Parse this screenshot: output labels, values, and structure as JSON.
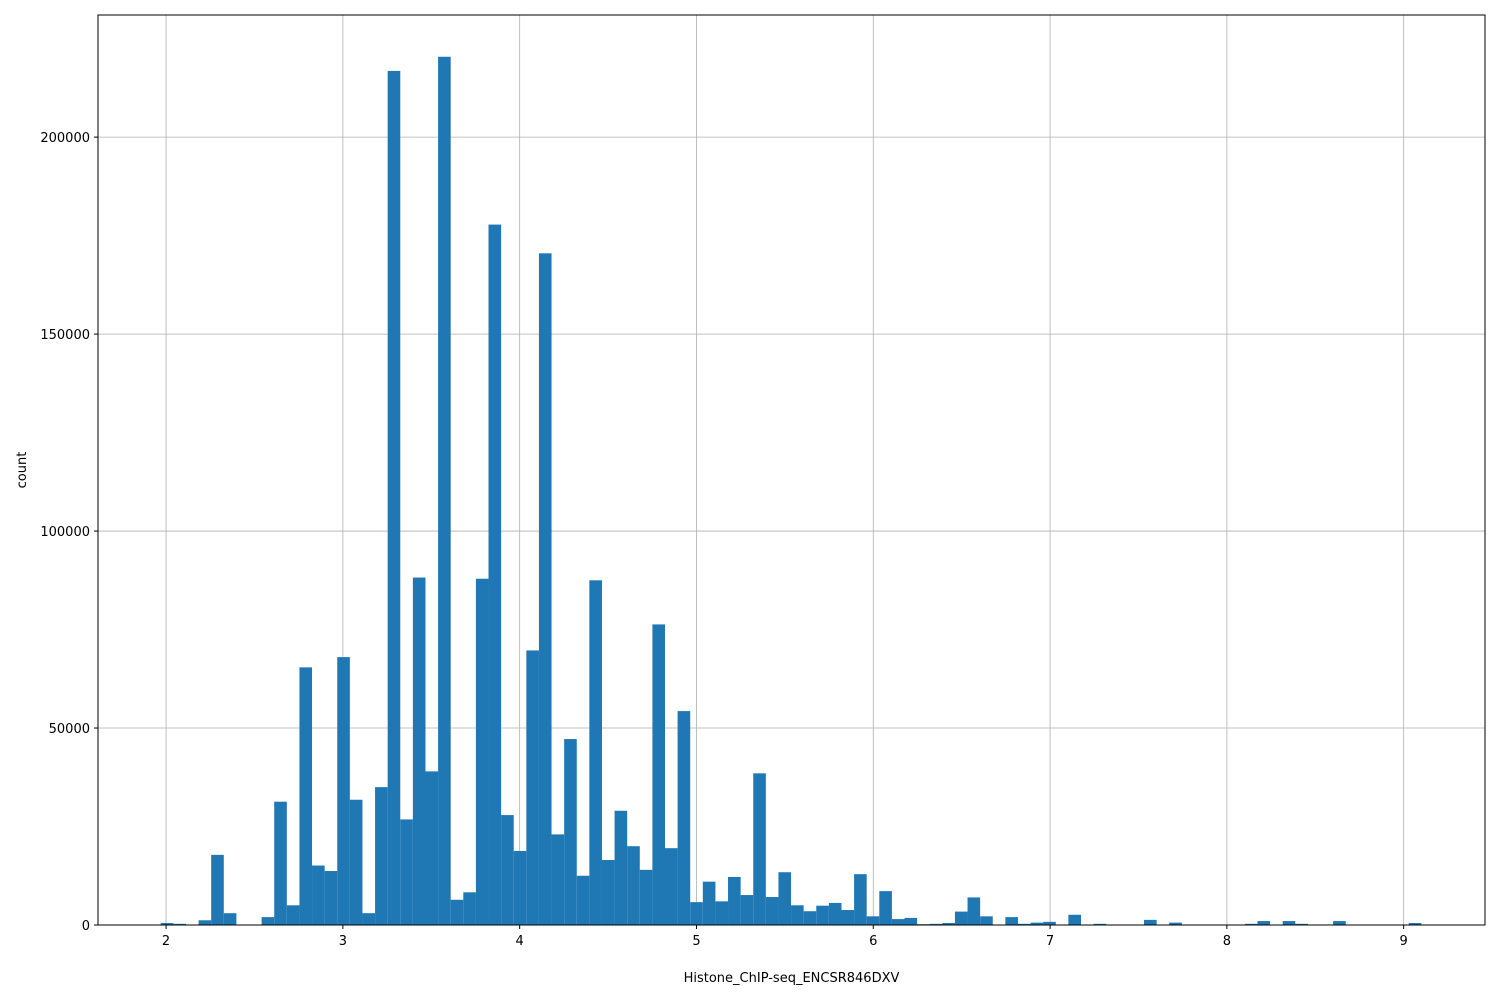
{
  "chart_data": {
    "type": "bar",
    "title": "",
    "xlabel": "Histone_ChIP-seq_ENCSR846DXV",
    "ylabel": "count",
    "xlim": [
      1.615,
      9.46
    ],
    "ylim": [
      0,
      231000
    ],
    "grid": true,
    "x_ticks": [
      2,
      3,
      4,
      5,
      6,
      7,
      8,
      9
    ],
    "x_tick_labels": [
      "2",
      "3",
      "4",
      "5",
      "6",
      "7",
      "8",
      "9"
    ],
    "y_ticks": [
      0,
      50000,
      100000,
      150000,
      200000
    ],
    "y_tick_labels": [
      "0",
      "50000",
      "100000",
      "150000",
      "200000"
    ],
    "bin_start": 1.97,
    "bin_width": 0.0713,
    "bar_color": "#1f77b4",
    "values": [
      500,
      300,
      0,
      1200,
      17800,
      3000,
      0,
      0,
      2000,
      31300,
      5000,
      65400,
      15100,
      13700,
      68000,
      31800,
      3000,
      35000,
      216800,
      26800,
      88200,
      39000,
      220400,
      6400,
      8300,
      87900,
      177800,
      27900,
      18800,
      69700,
      170500,
      23000,
      47200,
      12500,
      87500,
      16500,
      29000,
      20000,
      14000,
      76300,
      19500,
      54300,
      5800,
      11000,
      6000,
      12200,
      7600,
      38500,
      7100,
      13400,
      5000,
      3500,
      4900,
      5600,
      3800,
      12900,
      2200,
      8600,
      1500,
      1800,
      200,
      300,
      500,
      3400,
      7000,
      2200,
      0,
      2000,
      300,
      600,
      800,
      0,
      2600,
      0,
      300,
      0,
      0,
      0,
      1300,
      0,
      600,
      0,
      0,
      0,
      0,
      0,
      300,
      1000,
      0,
      1000,
      300,
      0,
      0,
      1000,
      0,
      0,
      0,
      0,
      0,
      500
    ]
  }
}
